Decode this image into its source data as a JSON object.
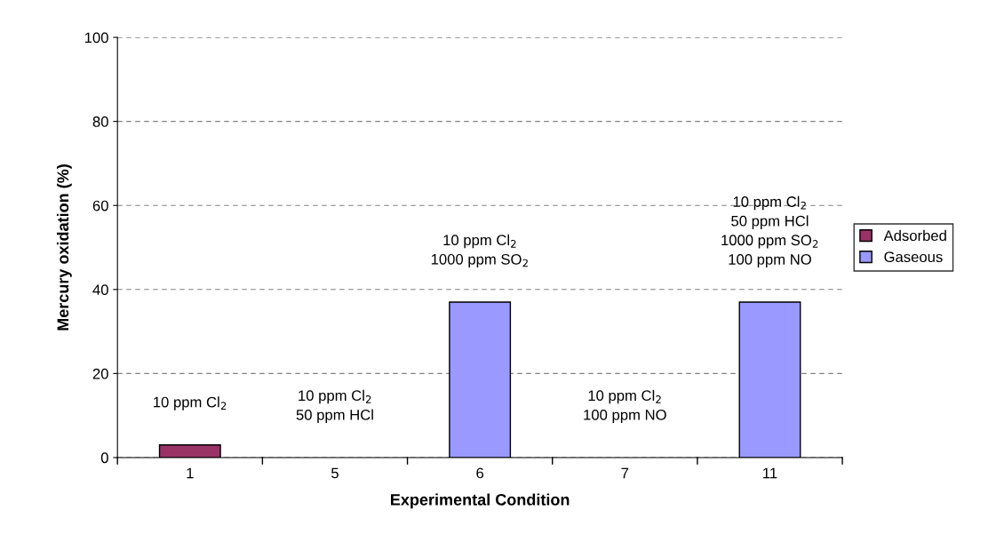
{
  "chart_data": {
    "type": "bar",
    "stacked": true,
    "xlabel": "Experimental Condition",
    "ylabel": "Mercury oxidation (%)",
    "categories": [
      "1",
      "5",
      "6",
      "7",
      "11"
    ],
    "series": [
      {
        "name": "Adsorbed",
        "color": "#993366",
        "values": [
          3,
          null,
          null,
          null,
          null
        ]
      },
      {
        "name": "Gaseous",
        "color": "#9999ff",
        "values": [
          null,
          null,
          37,
          null,
          37
        ]
      }
    ],
    "ylim": [
      0,
      100
    ],
    "yticks": [
      0,
      20,
      40,
      60,
      80,
      100
    ],
    "grid": "y",
    "legend": "right",
    "annotations": [
      "10 ppm Cl$_{2}$",
      "10 ppm Cl$_{2}$\n50 ppm HCl",
      "10 ppm Cl$_{2}$\n1000 ppm SO$_{2}$",
      "10 ppm Cl$_{2}$\n100 ppm NO",
      "10 ppm Cl$_{2}$\n50 ppm HCl\n1000 ppm SO$_{2}$\n100 ppm NO"
    ]
  }
}
